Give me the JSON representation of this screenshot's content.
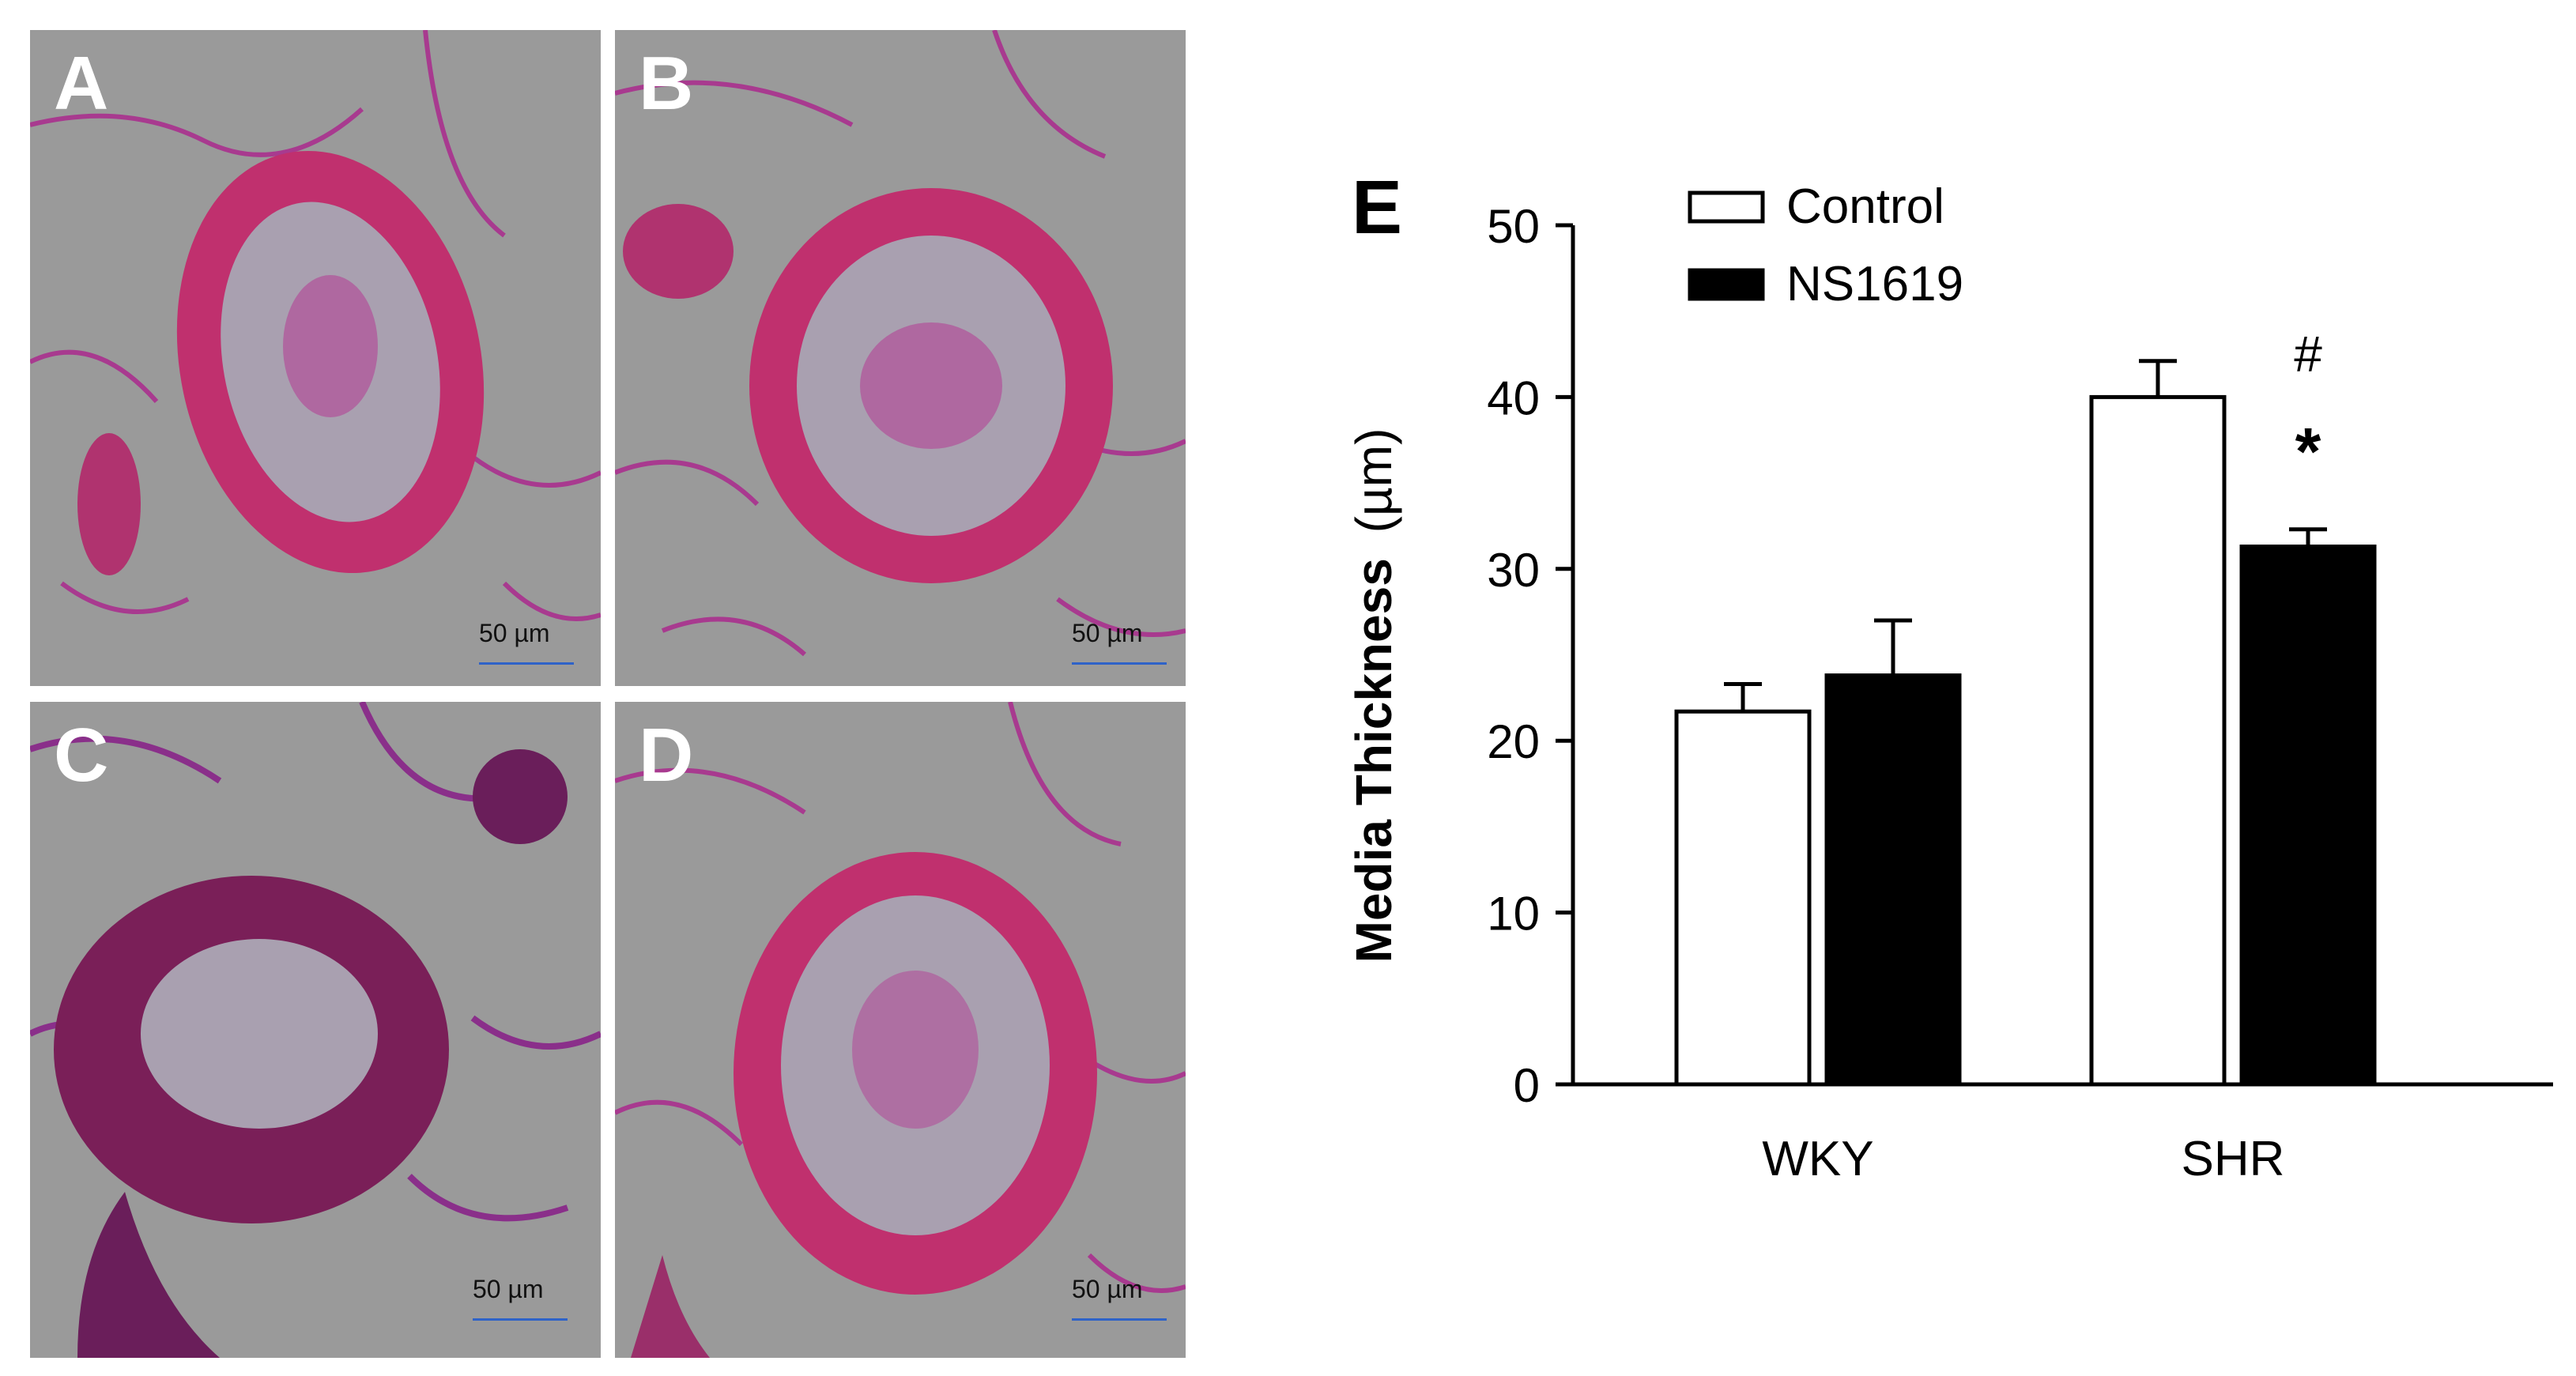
{
  "panels": [
    {
      "letter": "A",
      "scale_label": "50 µm"
    },
    {
      "letter": "B",
      "scale_label": "50 µm"
    },
    {
      "letter": "C",
      "scale_label": "50 µm"
    },
    {
      "letter": "D",
      "scale_label": "50 µm"
    }
  ],
  "chart_data": {
    "type": "bar",
    "panel_letter": "E",
    "title": "",
    "xlabel": "",
    "ylabel": "Media Thickness (µm)",
    "ylabel_main": "Media Thickness",
    "ylabel_unit": "(µm)",
    "ylim": [
      0,
      50
    ],
    "yticks": [
      0,
      10,
      20,
      30,
      40,
      50
    ],
    "categories": [
      "WKY",
      "SHR"
    ],
    "series": [
      {
        "name": "Control",
        "values": [
          21.7,
          40.0
        ],
        "errors": [
          1.6,
          2.1
        ],
        "fill": "#ffffff"
      },
      {
        "name": "NS1619",
        "values": [
          23.8,
          31.3
        ],
        "errors": [
          3.2,
          1.0
        ],
        "fill": "#000000"
      }
    ],
    "annotations": [
      {
        "text": "#",
        "category": "SHR",
        "series": "NS1619"
      },
      {
        "text": "*",
        "category": "SHR",
        "series": "NS1619"
      }
    ],
    "legend_position": "top-left",
    "grid": false
  }
}
